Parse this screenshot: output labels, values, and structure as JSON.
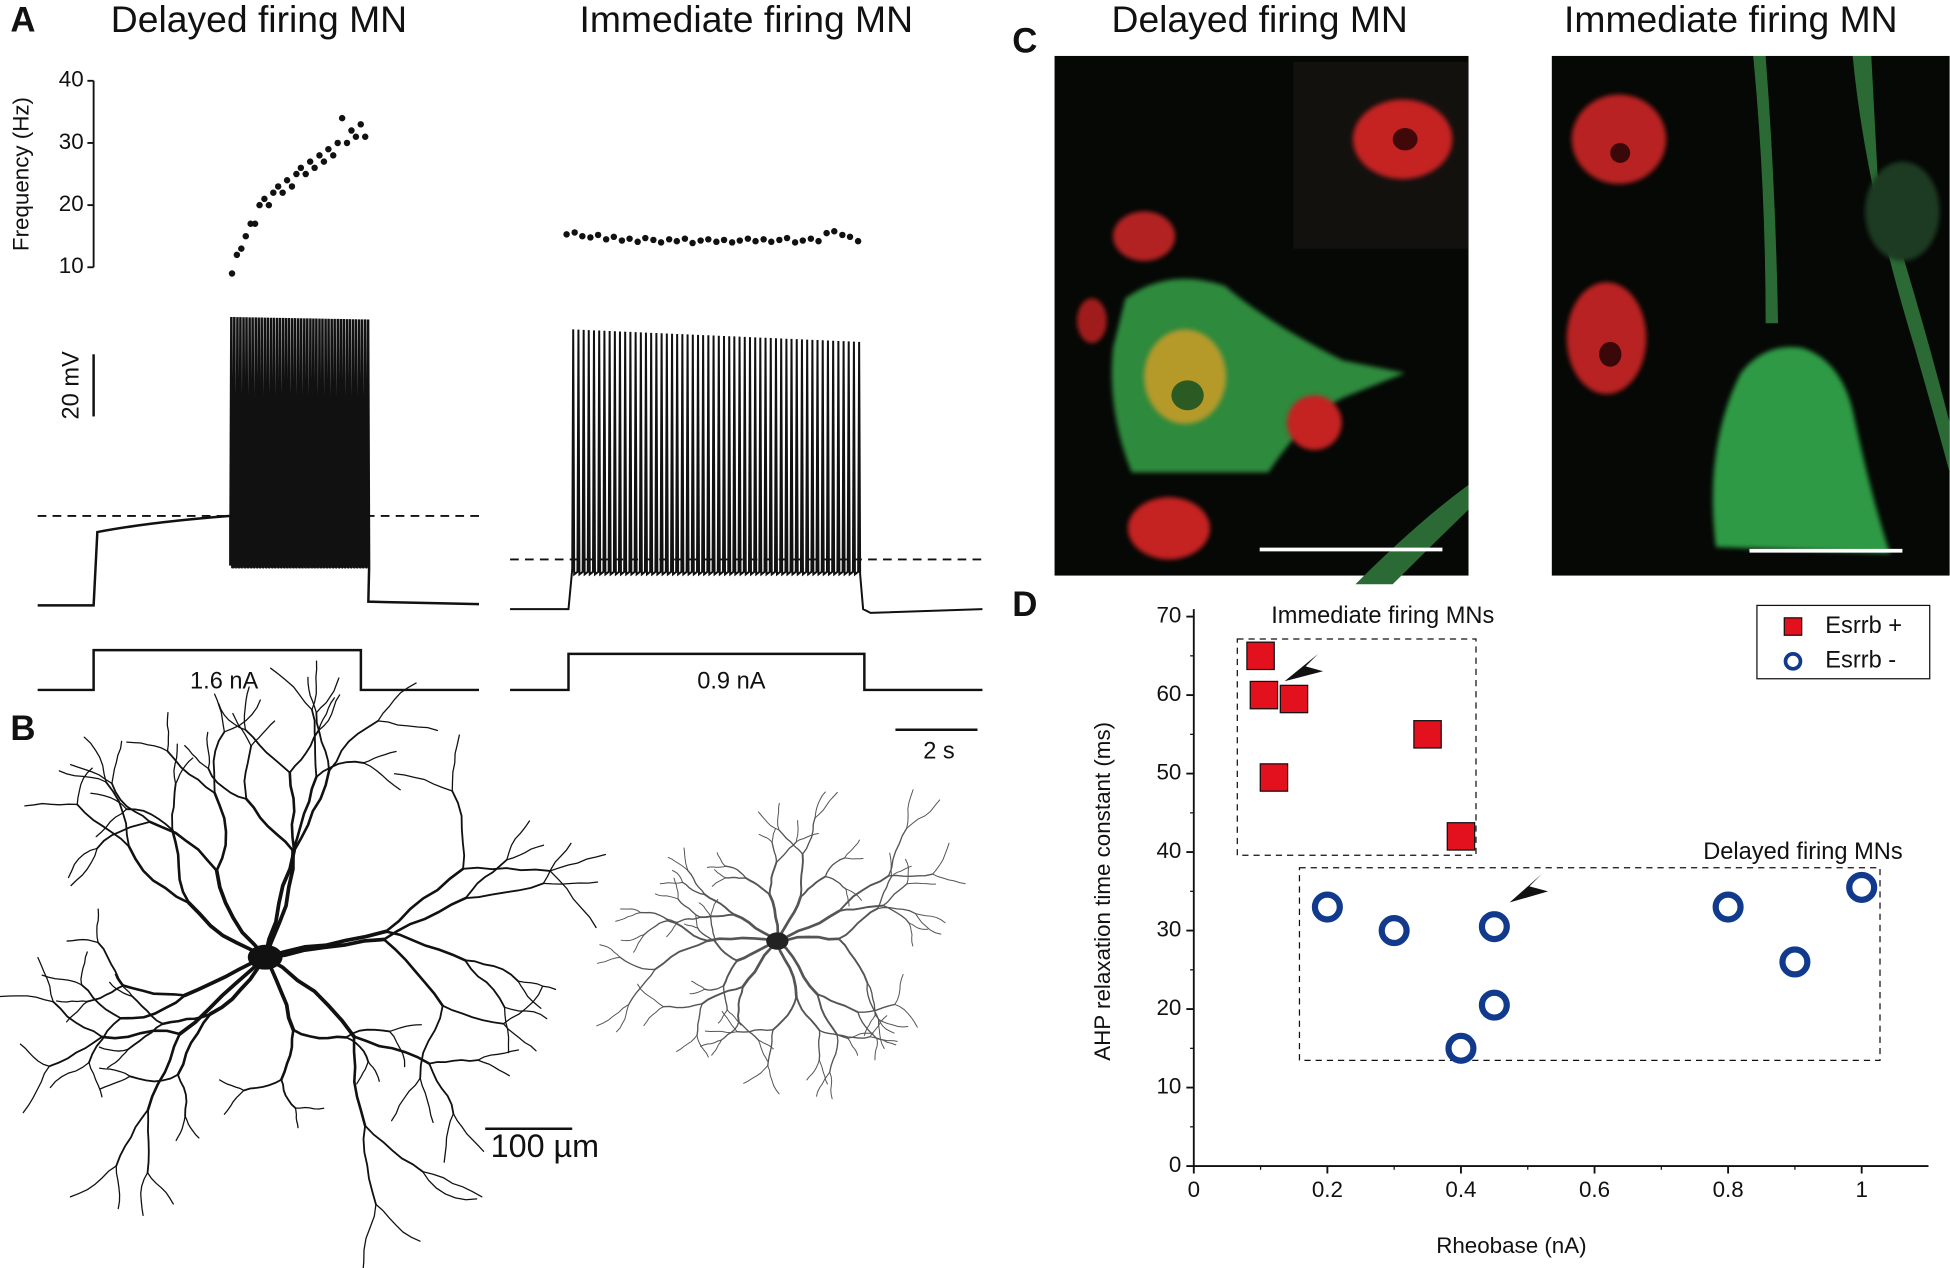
{
  "panels": {
    "A": {
      "label": "A",
      "titles": [
        "Delayed firing MN",
        "Immediate firing MN"
      ],
      "voltage_scale": "20 mV",
      "stimulus": [
        "1.6 nA",
        "0.9 nA"
      ],
      "time_scale": "2 s"
    },
    "B": {
      "label": "B",
      "scale": "100 µm"
    },
    "C": {
      "label": "C",
      "titles": [
        "Delayed firing MN",
        "Immediate firing MN"
      ]
    },
    "D": {
      "label": "D"
    }
  },
  "chart_data": [
    {
      "type": "scatter",
      "y_label": "Frequency (Hz)",
      "color": "#111111",
      "x": [
        4.8,
        4.92,
        5.03,
        5.14,
        5.26,
        5.37,
        5.48,
        5.6,
        5.71,
        5.82,
        5.94,
        6.05,
        6.16,
        6.28,
        6.39,
        6.5,
        6.62,
        6.73,
        6.84,
        6.96,
        7.07,
        7.18,
        7.3,
        7.41,
        7.52,
        7.64,
        7.75,
        7.86,
        7.98,
        8.09
      ],
      "values": [
        9,
        12,
        13,
        15,
        17,
        17,
        20,
        21,
        20,
        22,
        23,
        22,
        24,
        23,
        25,
        26,
        25,
        27,
        26,
        28,
        27,
        29,
        28,
        30,
        34,
        30,
        32,
        31,
        33,
        31
      ],
      "xlim": [
        0,
        10.9
      ],
      "ylim": [
        8,
        40
      ],
      "yticks": [
        10,
        20,
        30,
        40
      ]
    },
    {
      "type": "scatter",
      "color": "#111111",
      "x": [
        1.4,
        1.6,
        1.79,
        1.99,
        2.18,
        2.38,
        2.57,
        2.77,
        2.96,
        3.16,
        3.35,
        3.55,
        3.74,
        3.94,
        4.13,
        4.33,
        4.52,
        4.72,
        4.91,
        5.11,
        5.3,
        5.5,
        5.69,
        5.89,
        6.08,
        6.28,
        6.47,
        6.67,
        6.86,
        7.06,
        7.25,
        7.45,
        7.64,
        7.84,
        8.03,
        8.23,
        8.42,
        8.62
      ],
      "values": [
        15.3,
        15.6,
        15,
        14.8,
        15.2,
        14.5,
        14.9,
        14.3,
        14.6,
        14.1,
        14.7,
        14.4,
        14.0,
        14.5,
        14.2,
        14.6,
        13.9,
        14.3,
        14.5,
        14.1,
        14.4,
        14.0,
        14.3,
        14.6,
        14.2,
        14.5,
        14.1,
        14.4,
        14.7,
        14.0,
        14.3,
        14.6,
        14.2,
        15.5,
        15.8,
        15.2,
        14.9,
        14.2
      ],
      "xlim": [
        0,
        11.7
      ],
      "ylim": [
        8,
        40
      ]
    },
    {
      "type": "scatter",
      "x_label": "Rheobase (nA)",
      "y_label": "AHP relaxation time constant (ms)",
      "xlim": [
        0,
        1.1
      ],
      "ylim": [
        0,
        70
      ],
      "xticks": [
        0,
        0.2,
        0.4,
        0.6,
        0.8,
        1
      ],
      "yticks": [
        0,
        10,
        20,
        30,
        40,
        50,
        60,
        70
      ],
      "annotations": [
        "Immediate firing MNs",
        "Delayed firing MNs"
      ],
      "legend": "upper right",
      "series": [
        {
          "name": "Esrrb +",
          "color": "#e3101e",
          "marker": "square",
          "x": [
            0.1,
            0.105,
            0.15,
            0.12,
            0.35,
            0.4
          ],
          "values": [
            65,
            60,
            59.5,
            49.5,
            55,
            42
          ]
        },
        {
          "name": "Esrrb -",
          "color": "#123a8c",
          "marker": "circle",
          "x": [
            0.2,
            0.3,
            0.45,
            0.45,
            0.4,
            0.8,
            0.9,
            1.0
          ],
          "values": [
            33,
            30,
            30.5,
            20.5,
            15,
            33,
            26,
            35.5
          ]
        }
      ]
    }
  ]
}
